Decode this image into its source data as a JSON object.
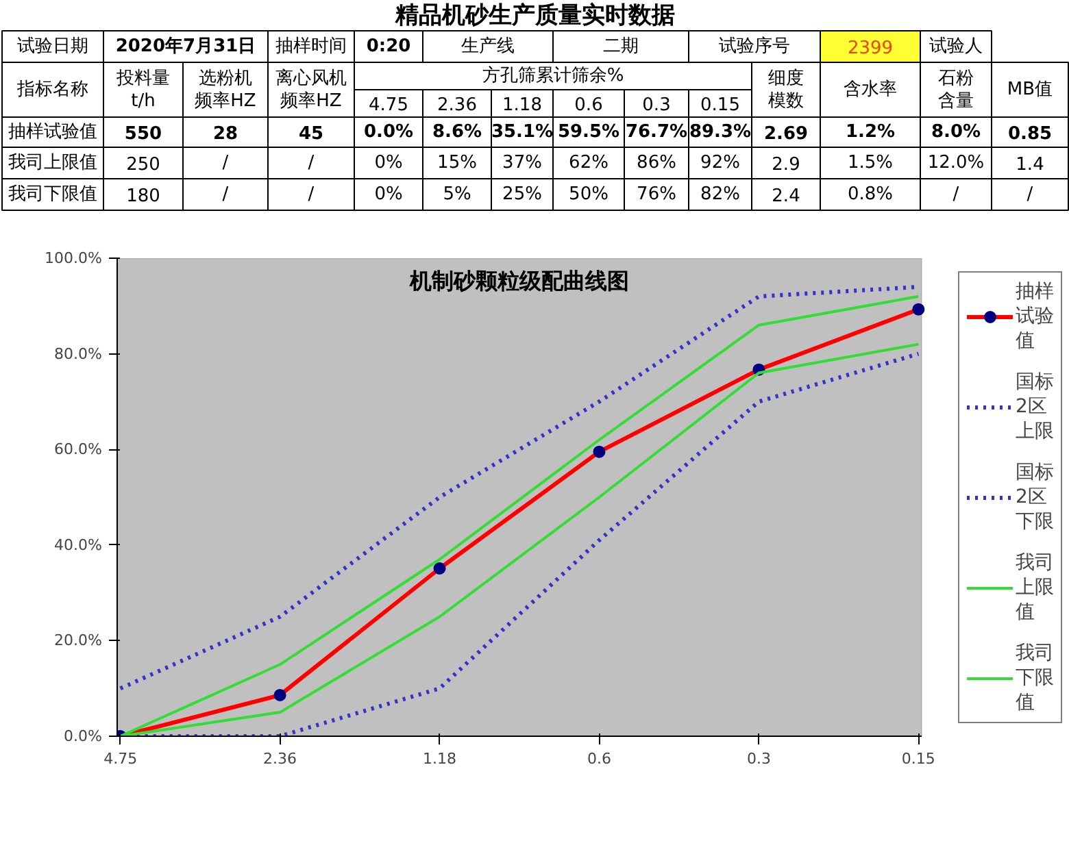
{
  "chart_data": [
    {
      "type": "other",
      "title": "精品机砂生产质量实时数据",
      "annotations": [
        "试验日期",
        "2020年7月31日",
        "抽样时间",
        "0:20",
        "生产线",
        "二期",
        "试验序号",
        "2399",
        "试验人",
        "指标名称",
        "投料量\nt/h",
        "选粉机频率HZ",
        "离心风机频率HZ",
        "方孔筛累计筛余%",
        "细度模数",
        "含水率",
        "石粉含量",
        "MB值",
        "4.75",
        "2.36",
        "1.18",
        "0.6",
        "0.3",
        "0.15",
        "抽样试验值",
        "550",
        "28",
        "45",
        "0.0%",
        "8.6%",
        "35.1%",
        "59.5%",
        "76.7%",
        "89.3%",
        "2.69",
        "1.2%",
        "8.0%",
        "0.85",
        "我司上限值",
        "250",
        "/",
        "/",
        "0%",
        "15%",
        "37%",
        "62%",
        "86%",
        "92%",
        "2.9",
        "1.5%",
        "12.0%",
        "1.4",
        "我司下限值",
        "180",
        "/",
        "/",
        "0%",
        "5%",
        "25%",
        "50%",
        "76%",
        "82%",
        "2.4",
        "0.8%",
        "/",
        "/"
      ]
    },
    {
      "type": "line",
      "title": "机制砂颗粒级配曲线图",
      "categories": [
        "4.75",
        "2.36",
        "1.18",
        "0.6",
        "0.3",
        "0.15"
      ],
      "ylim": [
        0,
        100
      ],
      "yticks": [
        {
          "value": 0,
          "label": "0.0%"
        },
        {
          "value": 20,
          "label": "20.0%"
        },
        {
          "value": 40,
          "label": "40.0%"
        },
        {
          "value": 60,
          "label": "60.0%"
        },
        {
          "value": 80,
          "label": "80.0%"
        },
        {
          "value": 100,
          "label": "100.0%"
        }
      ],
      "grid": false,
      "legend": "right",
      "series": [
        {
          "name": "抽样试验值",
          "color": "#ff0000",
          "marker": "circle",
          "line_style": "solid",
          "values": [
            0.0,
            8.6,
            35.1,
            59.5,
            76.7,
            89.3
          ]
        },
        {
          "name": "国标2区上限",
          "color": "#3333cc",
          "marker": "none",
          "line_style": "dotted",
          "values": [
            10,
            25,
            50,
            70,
            92,
            94
          ]
        },
        {
          "name": "国标2区下限",
          "color": "#3333cc",
          "marker": "none",
          "line_style": "dotted",
          "values": [
            0,
            0,
            10,
            41,
            70,
            80
          ]
        },
        {
          "name": "我司上限值",
          "color": "#33dd33",
          "marker": "none",
          "line_style": "solid",
          "values": [
            0,
            15,
            37,
            62,
            86,
            92
          ]
        },
        {
          "name": "我司下限值",
          "color": "#33dd33",
          "marker": "none",
          "line_style": "solid",
          "values": [
            0,
            5,
            25,
            50,
            76,
            82
          ]
        }
      ]
    }
  ]
}
